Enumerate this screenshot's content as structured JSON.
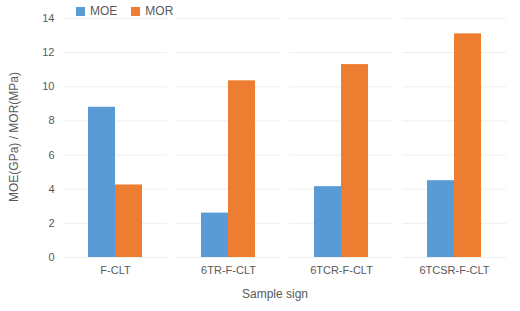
{
  "chart_data": {
    "type": "bar",
    "categories": [
      "F-CLT",
      "6TR-F-CLT",
      "6TCR-F-CLT",
      "6TCSR-F-CLT"
    ],
    "series": [
      {
        "name": "MOE",
        "color": "#5b9bd5",
        "values": [
          8.8,
          2.6,
          4.15,
          4.5
        ]
      },
      {
        "name": "MOR",
        "color": "#ed7d31",
        "values": [
          4.25,
          10.35,
          11.3,
          13.1
        ]
      }
    ],
    "x_label": "Sample sign",
    "y_label": "MOE(GPa) / MOR(MPa)",
    "ylim": [
      0,
      14
    ],
    "yticks": [
      0,
      2,
      4,
      6,
      8,
      10,
      12,
      14
    ],
    "grid": true,
    "legend": "top-left"
  }
}
